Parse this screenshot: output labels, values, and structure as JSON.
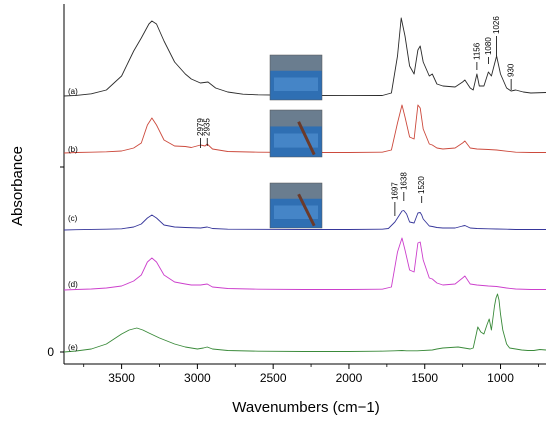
{
  "chart_data": {
    "type": "line",
    "title": "",
    "xlabel": "Wavenumbers (cm−1)",
    "ylabel": "Absorbance",
    "x_reversed": true,
    "xlim": [
      3880,
      700
    ],
    "x_ticks": [
      "3500",
      "3000",
      "2500",
      "2000",
      "1500",
      "1000"
    ],
    "y_ticks": [
      "0"
    ],
    "grid": false,
    "legend": "none",
    "series": [
      {
        "name": "(a)",
        "color": "#2b2b2b",
        "baseline": 320,
        "points": [
          [
            3880,
            0.0
          ],
          [
            3800,
            0.6
          ],
          [
            3700,
            2.2
          ],
          [
            3600,
            6.0
          ],
          [
            3500,
            20.0
          ],
          [
            3420,
            45.0
          ],
          [
            3370,
            58.0
          ],
          [
            3320,
            72.0
          ],
          [
            3300,
            75.0
          ],
          [
            3270,
            72.0
          ],
          [
            3220,
            55.0
          ],
          [
            3150,
            34.0
          ],
          [
            3080,
            22.0
          ],
          [
            3040,
            17.0
          ],
          [
            2980,
            13.0
          ],
          [
            2930,
            14.0
          ],
          [
            2880,
            8.0
          ],
          [
            2800,
            4.0
          ],
          [
            2700,
            1.8
          ],
          [
            2600,
            1.2
          ],
          [
            2300,
            0.5
          ],
          [
            2000,
            0.4
          ],
          [
            1780,
            0.5
          ],
          [
            1720,
            3.0
          ],
          [
            1680,
            40.0
          ],
          [
            1655,
            78.0
          ],
          [
            1630,
            60.0
          ],
          [
            1600,
            30.0
          ],
          [
            1570,
            22.0
          ],
          [
            1545,
            46.0
          ],
          [
            1530,
            50.0
          ],
          [
            1510,
            34.0
          ],
          [
            1470,
            20.0
          ],
          [
            1450,
            22.0
          ],
          [
            1420,
            12.0
          ],
          [
            1380,
            10.0
          ],
          [
            1300,
            9.0
          ],
          [
            1250,
            14.0
          ],
          [
            1235,
            16.0
          ],
          [
            1200,
            8.0
          ],
          [
            1180,
            6.0
          ],
          [
            1156,
            22.0
          ],
          [
            1140,
            10.0
          ],
          [
            1110,
            10.0
          ],
          [
            1080,
            24.0
          ],
          [
            1060,
            20.0
          ],
          [
            1040,
            32.0
          ],
          [
            1026,
            40.0
          ],
          [
            1000,
            22.0
          ],
          [
            960,
            8.0
          ],
          [
            930,
            5.0
          ],
          [
            900,
            6.0
          ],
          [
            850,
            4.0
          ],
          [
            800,
            3.0
          ],
          [
            700,
            3.5
          ]
        ]
      },
      {
        "name": "(b)",
        "color": "#cc4a3d",
        "baseline": 324,
        "points": [
          [
            3880,
            0.0
          ],
          [
            3800,
            0.5
          ],
          [
            3700,
            0.8
          ],
          [
            3600,
            1.2
          ],
          [
            3500,
            2.0
          ],
          [
            3420,
            5.0
          ],
          [
            3370,
            10.0
          ],
          [
            3330,
            28.0
          ],
          [
            3300,
            35.0
          ],
          [
            3270,
            28.0
          ],
          [
            3220,
            13.0
          ],
          [
            3150,
            7.0
          ],
          [
            3080,
            6.5
          ],
          [
            3040,
            5.5
          ],
          [
            2979,
            8.0
          ],
          [
            2950,
            7.0
          ],
          [
            2935,
            9.0
          ],
          [
            2900,
            4.0
          ],
          [
            2800,
            1.5
          ],
          [
            2600,
            0.8
          ],
          [
            2300,
            0.5
          ],
          [
            2000,
            0.5
          ],
          [
            1780,
            0.8
          ],
          [
            1720,
            3.0
          ],
          [
            1680,
            30.0
          ],
          [
            1650,
            48.0
          ],
          [
            1630,
            36.0
          ],
          [
            1600,
            16.0
          ],
          [
            1570,
            14.0
          ],
          [
            1545,
            48.0
          ],
          [
            1530,
            45.0
          ],
          [
            1510,
            24.0
          ],
          [
            1470,
            9.0
          ],
          [
            1450,
            8.0
          ],
          [
            1420,
            5.0
          ],
          [
            1380,
            4.0
          ],
          [
            1300,
            5.0
          ],
          [
            1250,
            10.0
          ],
          [
            1235,
            12.0
          ],
          [
            1200,
            5.0
          ],
          [
            1156,
            4.0
          ],
          [
            1080,
            3.5
          ],
          [
            1026,
            3.0
          ],
          [
            960,
            1.8
          ],
          [
            900,
            0.8
          ],
          [
            800,
            0.5
          ],
          [
            700,
            0.5
          ]
        ]
      },
      {
        "name": "(c)",
        "color": "#36369a",
        "baseline": 328,
        "points": [
          [
            3880,
            0.0
          ],
          [
            3800,
            0.3
          ],
          [
            3700,
            0.6
          ],
          [
            3600,
            0.8
          ],
          [
            3500,
            1.2
          ],
          [
            3420,
            3.0
          ],
          [
            3370,
            6.0
          ],
          [
            3330,
            12.0
          ],
          [
            3300,
            15.0
          ],
          [
            3270,
            12.0
          ],
          [
            3220,
            5.0
          ],
          [
            3150,
            3.0
          ],
          [
            3080,
            2.5
          ],
          [
            2979,
            2.0
          ],
          [
            2935,
            3.0
          ],
          [
            2900,
            1.5
          ],
          [
            2800,
            0.8
          ],
          [
            2300,
            0.5
          ],
          [
            2000,
            0.5
          ],
          [
            1780,
            0.8
          ],
          [
            1740,
            1.5
          ],
          [
            1697,
            8.0
          ],
          [
            1680,
            12.0
          ],
          [
            1650,
            19.0
          ],
          [
            1638,
            19.5
          ],
          [
            1620,
            16.0
          ],
          [
            1600,
            8.0
          ],
          [
            1570,
            7.0
          ],
          [
            1545,
            17.0
          ],
          [
            1530,
            17.5
          ],
          [
            1520,
            15.0
          ],
          [
            1510,
            11.0
          ],
          [
            1470,
            4.0
          ],
          [
            1450,
            3.5
          ],
          [
            1420,
            2.5
          ],
          [
            1380,
            2.0
          ],
          [
            1300,
            2.0
          ],
          [
            1250,
            4.0
          ],
          [
            1235,
            4.5
          ],
          [
            1200,
            2.0
          ],
          [
            1156,
            1.5
          ],
          [
            1080,
            1.2
          ],
          [
            1026,
            1.0
          ],
          [
            960,
            0.8
          ],
          [
            900,
            0.5
          ],
          [
            800,
            0.5
          ],
          [
            700,
            0.5
          ]
        ]
      },
      {
        "name": "(d)",
        "color": "#cc3fcc",
        "baseline": 330,
        "points": [
          [
            3880,
            0.0
          ],
          [
            3800,
            0.5
          ],
          [
            3700,
            1.0
          ],
          [
            3600,
            2.0
          ],
          [
            3500,
            4.0
          ],
          [
            3420,
            9.0
          ],
          [
            3370,
            15.0
          ],
          [
            3330,
            28.0
          ],
          [
            3300,
            32.0
          ],
          [
            3270,
            28.0
          ],
          [
            3220,
            15.0
          ],
          [
            3150,
            8.0
          ],
          [
            3080,
            6.0
          ],
          [
            3040,
            5.0
          ],
          [
            2979,
            5.0
          ],
          [
            2935,
            6.0
          ],
          [
            2900,
            3.0
          ],
          [
            2800,
            1.5
          ],
          [
            2600,
            0.8
          ],
          [
            2300,
            0.5
          ],
          [
            2000,
            0.5
          ],
          [
            1780,
            0.8
          ],
          [
            1720,
            3.0
          ],
          [
            1680,
            38.0
          ],
          [
            1650,
            52.0
          ],
          [
            1630,
            40.0
          ],
          [
            1600,
            20.0
          ],
          [
            1570,
            18.0
          ],
          [
            1545,
            47.0
          ],
          [
            1530,
            48.0
          ],
          [
            1510,
            30.0
          ],
          [
            1470,
            12.0
          ],
          [
            1450,
            11.0
          ],
          [
            1420,
            7.0
          ],
          [
            1380,
            5.0
          ],
          [
            1300,
            6.0
          ],
          [
            1250,
            12.0
          ],
          [
            1235,
            14.0
          ],
          [
            1200,
            6.0
          ],
          [
            1156,
            5.0
          ],
          [
            1080,
            4.0
          ],
          [
            1026,
            3.5
          ],
          [
            960,
            2.0
          ],
          [
            900,
            1.0
          ],
          [
            800,
            0.5
          ],
          [
            700,
            0.5
          ]
        ]
      },
      {
        "name": "(e)",
        "color": "#3a8a3a",
        "baseline": 334,
        "points": [
          [
            3880,
            0.0
          ],
          [
            3800,
            1.0
          ],
          [
            3700,
            3.0
          ],
          [
            3600,
            8.0
          ],
          [
            3550,
            13.0
          ],
          [
            3500,
            18.0
          ],
          [
            3450,
            22.0
          ],
          [
            3400,
            24.0
          ],
          [
            3360,
            22.0
          ],
          [
            3320,
            19.0
          ],
          [
            3250,
            14.0
          ],
          [
            3150,
            8.0
          ],
          [
            3080,
            5.0
          ],
          [
            3000,
            3.0
          ],
          [
            2960,
            4.0
          ],
          [
            2935,
            5.0
          ],
          [
            2900,
            3.0
          ],
          [
            2800,
            1.5
          ],
          [
            2600,
            0.8
          ],
          [
            2300,
            0.5
          ],
          [
            2000,
            0.5
          ],
          [
            1800,
            0.8
          ],
          [
            1700,
            1.2
          ],
          [
            1650,
            1.5
          ],
          [
            1620,
            1.2
          ],
          [
            1550,
            1.2
          ],
          [
            1450,
            2.0
          ],
          [
            1420,
            3.0
          ],
          [
            1380,
            4.0
          ],
          [
            1330,
            4.5
          ],
          [
            1280,
            5.0
          ],
          [
            1240,
            4.0
          ],
          [
            1200,
            3.0
          ],
          [
            1180,
            4.0
          ],
          [
            1160,
            18.0
          ],
          [
            1150,
            25.0
          ],
          [
            1130,
            20.0
          ],
          [
            1110,
            18.0
          ],
          [
            1090,
            27.0
          ],
          [
            1075,
            33.0
          ],
          [
            1060,
            22.0
          ],
          [
            1040,
            46.0
          ],
          [
            1030,
            54.0
          ],
          [
            1020,
            58.0
          ],
          [
            1010,
            52.0
          ],
          [
            1000,
            38.0
          ],
          [
            985,
            22.0
          ],
          [
            960,
            8.0
          ],
          [
            940,
            4.0
          ],
          [
            900,
            3.0
          ],
          [
            860,
            2.0
          ],
          [
            820,
            1.5
          ],
          [
            780,
            1.5
          ],
          [
            740,
            2.5
          ],
          [
            700,
            2.0
          ]
        ]
      }
    ],
    "annotations": [
      {
        "trace": "(a)",
        "labels": [
          "1156",
          "1080",
          "1026",
          "930"
        ]
      },
      {
        "trace": "(b)",
        "labels": [
          "2979",
          "2935"
        ]
      },
      {
        "trace": "(c)",
        "labels": [
          "1697",
          "1638",
          "1520"
        ]
      }
    ]
  },
  "images": [
    {
      "name": "photo-a",
      "description": "sample photo"
    },
    {
      "name": "photo-b",
      "description": "sample photo"
    },
    {
      "name": "photo-c",
      "description": "sample photo"
    }
  ]
}
